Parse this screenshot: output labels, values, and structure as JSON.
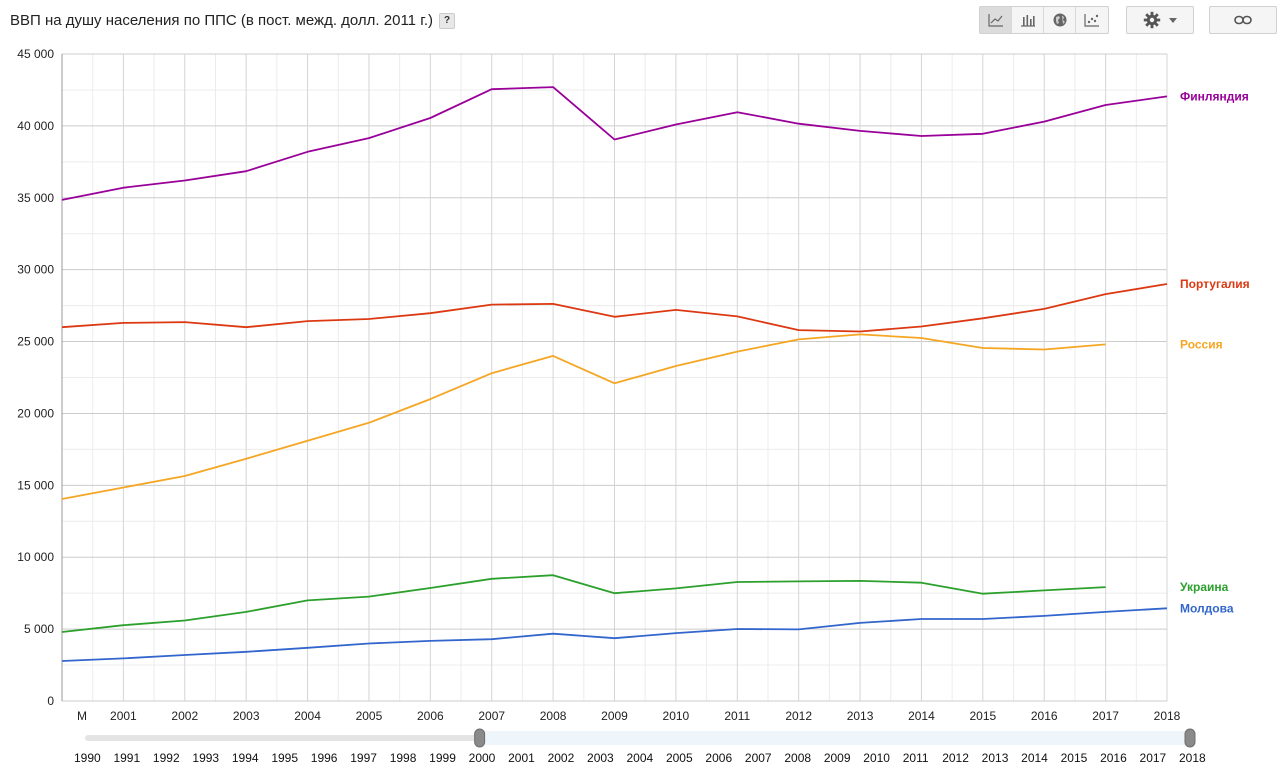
{
  "title": "ВВП на душу населения по ППС (в пост. межд. долл. 2011 г.)",
  "help_label": "?",
  "toolbar": {
    "views": [
      {
        "icon": "line-chart-icon",
        "active": true
      },
      {
        "icon": "bar-chart-icon",
        "active": false
      },
      {
        "icon": "globe-map-icon",
        "active": false
      },
      {
        "icon": "scatter-chart-icon",
        "active": false
      }
    ],
    "settings_icon": "gear-icon",
    "dropdown_icon": "chevron-down-icon",
    "link_icon": "link-icon"
  },
  "chart_data": {
    "type": "line",
    "x": [
      2000,
      2001,
      2002,
      2003,
      2004,
      2005,
      2006,
      2007,
      2008,
      2009,
      2010,
      2011,
      2012,
      2013,
      2014,
      2015,
      2016,
      2017,
      2018
    ],
    "x_tick_labels": [
      "M",
      "2001",
      "2002",
      "2003",
      "2004",
      "2005",
      "2006",
      "2007",
      "2008",
      "2009",
      "2010",
      "2011",
      "2012",
      "2013",
      "2014",
      "2015",
      "2016",
      "2017",
      "2018"
    ],
    "ylim": [
      0,
      45000
    ],
    "y_ticks": [
      0,
      5000,
      10000,
      15000,
      20000,
      25000,
      30000,
      35000,
      40000,
      45000
    ],
    "y_tick_labels": [
      "0",
      "5 000",
      "10 000",
      "15 000",
      "20 000",
      "25 000",
      "30 000",
      "35 000",
      "40 000",
      "45 000"
    ],
    "grid": true,
    "legend": "right, inline at line ends",
    "series": [
      {
        "name": "Финляндия",
        "color": "#990099",
        "values": [
          34850,
          35700,
          36200,
          36850,
          38200,
          39150,
          40550,
          42550,
          42700,
          39050,
          40100,
          40950,
          40150,
          39650,
          39300,
          39450,
          40300,
          41450,
          42050
        ]
      },
      {
        "name": "Португалия",
        "color": "#dc3912",
        "values": [
          26000,
          26300,
          26350,
          26000,
          26420,
          26570,
          26970,
          27570,
          27620,
          26720,
          27200,
          26750,
          25800,
          25700,
          26050,
          26620,
          27270,
          28300,
          29000
        ]
      },
      {
        "name": "Россия",
        "color": "#f5a623",
        "values": [
          14050,
          14850,
          15650,
          16850,
          18100,
          19350,
          21000,
          22800,
          24000,
          22100,
          23300,
          24300,
          25150,
          25500,
          25250,
          24550,
          24450,
          24800,
          null
        ]
      },
      {
        "name": "Украина",
        "color": "#2ca02c",
        "values": [
          4800,
          5270,
          5600,
          6200,
          7000,
          7260,
          7860,
          8500,
          8750,
          7500,
          7830,
          8280,
          8320,
          8350,
          8230,
          7460,
          7690,
          7920,
          null
        ]
      },
      {
        "name": "Молдова",
        "color": "#3366cc",
        "values": [
          2780,
          2960,
          3200,
          3420,
          3700,
          4000,
          4180,
          4300,
          4680,
          4370,
          4720,
          5010,
          4980,
          5430,
          5700,
          5700,
          5920,
          6200,
          6450
        ]
      }
    ]
  },
  "timeline": {
    "years": [
      "1990",
      "1991",
      "1992",
      "1993",
      "1994",
      "1995",
      "1996",
      "1997",
      "1998",
      "1999",
      "2000",
      "2001",
      "2002",
      "2003",
      "2004",
      "2005",
      "2006",
      "2007",
      "2008",
      "2009",
      "2010",
      "2011",
      "2012",
      "2013",
      "2014",
      "2015",
      "2016",
      "2017",
      "2018"
    ],
    "range_start": "2000",
    "range_end": "2018"
  }
}
